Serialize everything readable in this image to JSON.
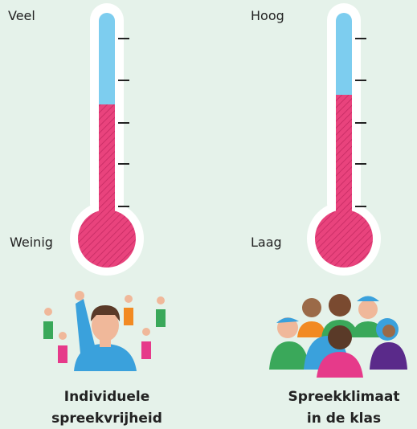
{
  "left": {
    "top_label": "Veel",
    "bottom_label": "Weinig",
    "caption": [
      "Individuele",
      "spreekvrijheid"
    ]
  },
  "right": {
    "top_label": "Hoog",
    "bottom_label": "Laag",
    "caption": [
      "Spreekklimaat",
      "in de klas"
    ]
  }
}
